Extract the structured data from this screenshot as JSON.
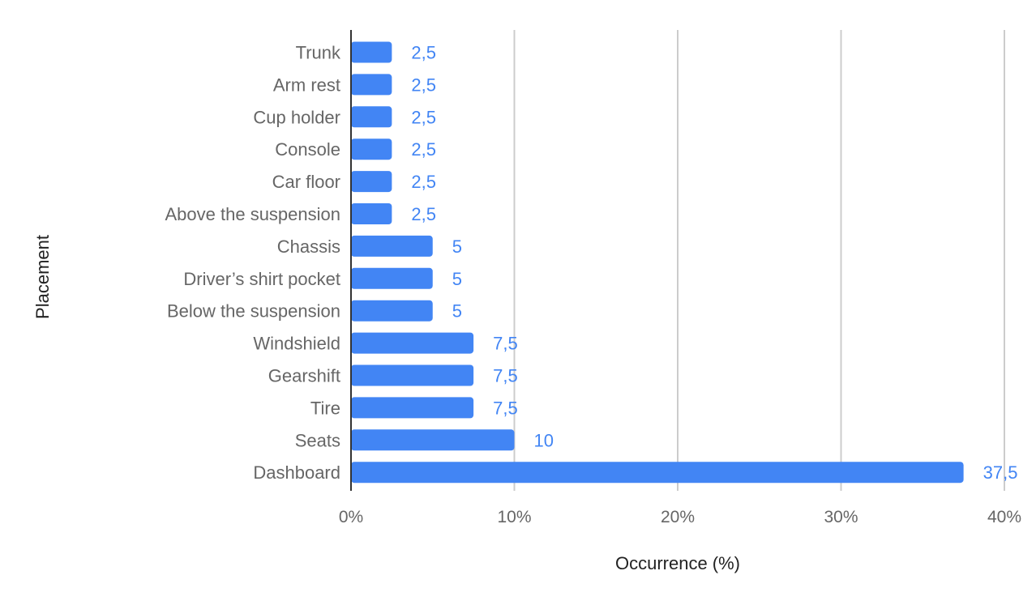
{
  "chart_data": {
    "type": "bar",
    "orientation": "horizontal",
    "categories": [
      "Trunk",
      "Arm rest",
      "Cup holder",
      "Console",
      "Car floor",
      "Above the suspension",
      "Chassis",
      "Driver’s shirt pocket",
      "Below the suspension",
      "Windshield",
      "Gearshift",
      "Tire",
      "Seats",
      "Dashboard"
    ],
    "series": [
      {
        "values": [
          2.5,
          2.5,
          2.5,
          2.5,
          2.5,
          2.5,
          5,
          5,
          5,
          7.5,
          7.5,
          7.5,
          10,
          37.5
        ],
        "data_labels": [
          "2,5",
          "2,5",
          "2,5",
          "2,5",
          "2,5",
          "2,5",
          "5",
          "5",
          "5",
          "7,5",
          "7,5",
          "7,5",
          "10",
          "37,5"
        ],
        "color": "#4285f4"
      }
    ],
    "xlabel": "Occurrence (%)",
    "ylabel": "Placement",
    "xlim": [
      0,
      40
    ],
    "x_ticks": [
      0,
      10,
      20,
      30,
      40
    ],
    "x_tick_labels": [
      "0%",
      "10%",
      "20%",
      "30%",
      "40%"
    ],
    "grid": true,
    "legend": "none",
    "colors": {
      "bar": "#4285f4",
      "data_label": "#4285f4",
      "text": "#666666",
      "axis_title": "#222222",
      "grid": "#cccccc",
      "axis": "#333333"
    }
  }
}
